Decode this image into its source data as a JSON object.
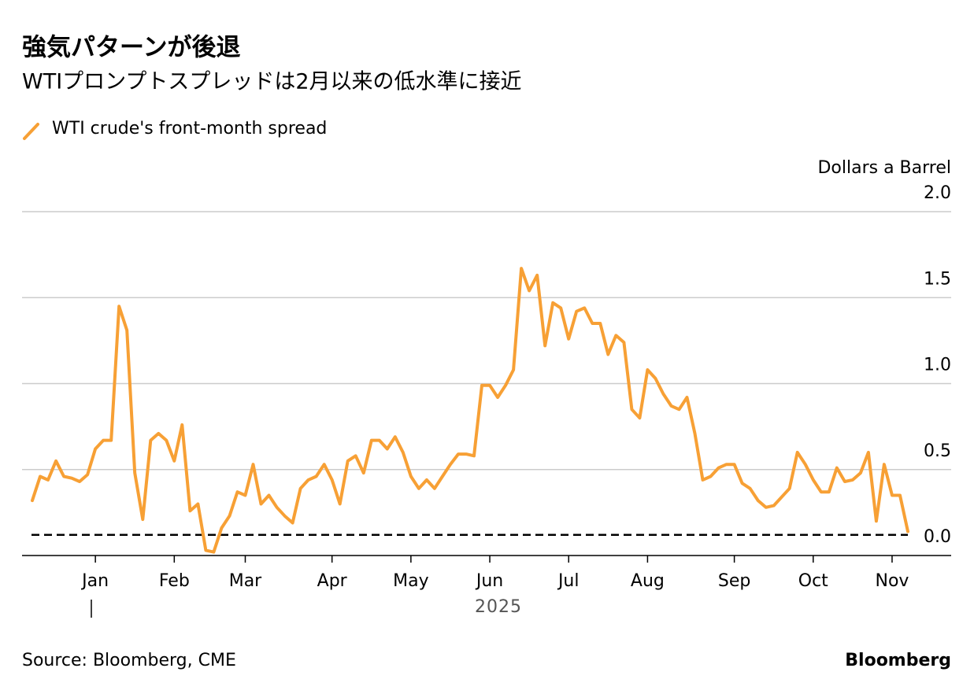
{
  "chart_data": {
    "type": "line",
    "title": "強気パターンが後退",
    "subtitle": "WTIプロンプトスプレッドは2月以来の低水準に接近",
    "y_axis_label": "Dollars a Barrel",
    "x_group_label": "2025",
    "source": "Source: Bloomberg, CME",
    "brand": "Bloomberg",
    "categories": [
      null,
      null,
      null,
      null,
      null,
      null,
      null,
      null,
      "Jan",
      null,
      null,
      null,
      null,
      null,
      null,
      null,
      null,
      null,
      "Feb",
      null,
      null,
      null,
      null,
      null,
      null,
      null,
      null,
      "Mar",
      null,
      null,
      null,
      null,
      null,
      null,
      null,
      null,
      null,
      null,
      "Apr",
      null,
      null,
      null,
      null,
      null,
      null,
      null,
      null,
      null,
      "May",
      null,
      null,
      null,
      null,
      null,
      null,
      null,
      null,
      null,
      "Jun",
      null,
      null,
      null,
      null,
      null,
      null,
      null,
      null,
      null,
      "Jul",
      null,
      null,
      null,
      null,
      null,
      null,
      null,
      null,
      null,
      "Aug",
      null,
      null,
      null,
      null,
      null,
      null,
      null,
      null,
      null,
      null,
      "Sep",
      null,
      null,
      null,
      null,
      null,
      null,
      null,
      null,
      null,
      "Oct",
      null,
      null,
      null,
      null,
      null,
      null,
      null,
      null,
      null,
      "Nov",
      null,
      null
    ],
    "series": [
      {
        "name": "WTI crude's front-month spread",
        "color": "#f7a035",
        "values": [
          0.32,
          0.46,
          0.44,
          0.55,
          0.46,
          0.45,
          0.43,
          0.47,
          0.62,
          0.67,
          0.67,
          1.45,
          1.31,
          0.48,
          0.21,
          0.67,
          0.71,
          0.67,
          0.55,
          0.76,
          0.26,
          0.3,
          0.03,
          0.02,
          0.16,
          0.23,
          0.37,
          0.35,
          0.53,
          0.3,
          0.35,
          0.28,
          0.23,
          0.19,
          0.39,
          0.44,
          0.46,
          0.53,
          0.44,
          0.3,
          0.55,
          0.58,
          0.48,
          0.67,
          0.67,
          0.62,
          0.69,
          0.6,
          0.46,
          0.39,
          0.44,
          0.39,
          0.46,
          0.53,
          0.59,
          0.59,
          0.58,
          0.99,
          0.99,
          0.92,
          0.99,
          1.08,
          1.67,
          1.54,
          1.63,
          1.22,
          1.47,
          1.44,
          1.26,
          1.42,
          1.44,
          1.35,
          1.35,
          1.17,
          1.28,
          1.24,
          0.85,
          0.8,
          1.08,
          1.03,
          0.94,
          0.87,
          0.85,
          0.92,
          0.71,
          0.44,
          0.46,
          0.51,
          0.53,
          0.53,
          0.42,
          0.39,
          0.32,
          0.28,
          0.29,
          0.34,
          0.39,
          0.6,
          0.53,
          0.44,
          0.37,
          0.37,
          0.51,
          0.43,
          0.44,
          0.48,
          0.6,
          0.2,
          0.53,
          0.35,
          0.35,
          0.14
        ]
      }
    ],
    "ylim": [
      0,
      2.0
    ],
    "yticks": [
      {
        "value": 0,
        "label": "0.0"
      },
      0.5,
      {
        "value": 1,
        "label": "1.0"
      },
      1.5,
      {
        "value": 2,
        "label": "2.0"
      }
    ],
    "reference_line": 0.12,
    "grid": true
  }
}
